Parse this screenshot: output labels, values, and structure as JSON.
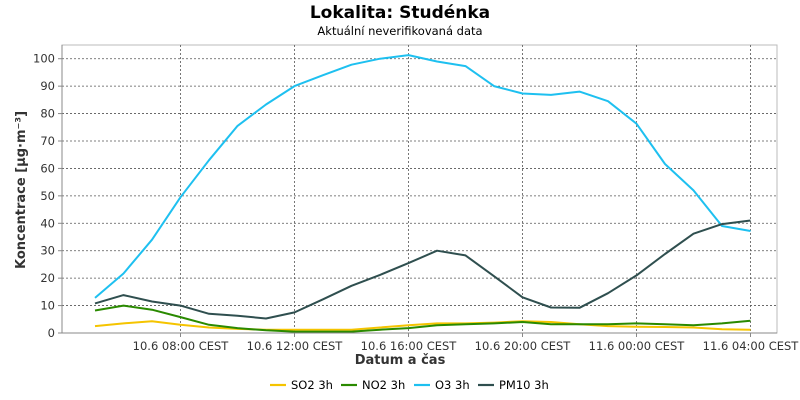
{
  "chart_data": {
    "type": "line",
    "title": "Lokalita: Studénka",
    "subtitle": "Aktuální neverifikovaná data",
    "xlabel": "Datum a čas",
    "ylabel": "Koncentrace [µg·m⁻³]",
    "ylim": [
      0,
      105
    ],
    "yticks": [
      0,
      10,
      20,
      30,
      40,
      50,
      60,
      70,
      80,
      90,
      100
    ],
    "grid": true,
    "legend_position": "bottom",
    "x": [
      "10.6 05:00",
      "10.6 06:00",
      "10.6 07:00",
      "10.6 08:00",
      "10.6 09:00",
      "10.6 10:00",
      "10.6 11:00",
      "10.6 12:00",
      "10.6 13:00",
      "10.6 14:00",
      "10.6 15:00",
      "10.6 16:00",
      "10.6 17:00",
      "10.6 18:00",
      "10.6 19:00",
      "10.6 20:00",
      "10.6 21:00",
      "10.6 22:00",
      "10.6 23:00",
      "11.6 00:00",
      "11.6 01:00",
      "11.6 02:00",
      "11.6 03:00",
      "11.6 04:00"
    ],
    "x_tick_labels": [
      {
        "index": 3,
        "label": "10.6 08:00 CEST"
      },
      {
        "index": 7,
        "label": "10.6 12:00 CEST"
      },
      {
        "index": 11,
        "label": "10.6 16:00 CEST"
      },
      {
        "index": 15,
        "label": "10.6 20:00 CEST"
      },
      {
        "index": 19,
        "label": "11.6 00:00 CEST"
      },
      {
        "index": 23,
        "label": "11.6 04:00 CEST"
      }
    ],
    "series": [
      {
        "name": "SO2 3h",
        "color": "#f5c400",
        "values": [
          2.5,
          3.5,
          4.3,
          3.0,
          2.0,
          1.5,
          1.2,
          1.2,
          1.2,
          1.2,
          2.0,
          2.8,
          3.5,
          3.5,
          3.8,
          4.3,
          4.0,
          3.2,
          2.5,
          2.3,
          2.2,
          2.0,
          1.4,
          1.2
        ]
      },
      {
        "name": "NO2 3h",
        "color": "#2a8a00",
        "values": [
          8.2,
          10.0,
          8.5,
          5.8,
          3.0,
          1.8,
          1.0,
          0.5,
          0.5,
          0.5,
          1.2,
          1.8,
          2.8,
          3.2,
          3.5,
          4.0,
          3.2,
          3.2,
          3.2,
          3.5,
          3.2,
          2.8,
          3.5,
          4.5
        ]
      },
      {
        "name": "O3 3h",
        "color": "#1ec0f0",
        "values": [
          12.8,
          21.7,
          34.0,
          49.5,
          63.0,
          75.5,
          83.3,
          90.0,
          94.0,
          97.8,
          100.0,
          101.3,
          99.0,
          97.3,
          90.0,
          87.3,
          86.8,
          88.0,
          84.5,
          76.3,
          61.6,
          52.0,
          39.0,
          37.2
        ]
      },
      {
        "name": "PM10 3h",
        "color": "#2f4f4f",
        "values": [
          10.8,
          13.8,
          11.5,
          10.0,
          7.0,
          6.3,
          5.3,
          7.5,
          12.3,
          17.2,
          21.2,
          25.5,
          30.0,
          28.3,
          20.7,
          13.0,
          9.3,
          9.2,
          14.5,
          21.0,
          28.8,
          36.2,
          39.7,
          41.0
        ]
      }
    ]
  }
}
